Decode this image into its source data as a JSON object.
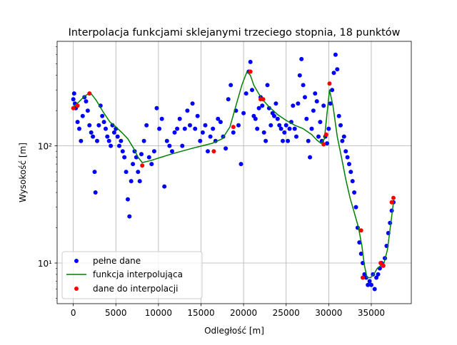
{
  "chart_data": {
    "type": "scatter",
    "title": "Interpolacja funkcjami sklejanymi trzeciego stopnia, 18 punktów",
    "xlabel": "Odległość [m]",
    "ylabel": "Wysokość [m]",
    "yscale": "log",
    "xlim": [
      -1900,
      39700
    ],
    "ylim": [
      4.5,
      780
    ],
    "grid": true,
    "legend_position": "lower-left",
    "x_ticks": [
      0,
      5000,
      10000,
      15000,
      20000,
      25000,
      30000,
      35000
    ],
    "x_tick_labels": [
      "0",
      "5000",
      "10000",
      "15000",
      "20000",
      "25000",
      "30000",
      "35000"
    ],
    "y_ticks": [
      10,
      100
    ],
    "y_tick_labels": [
      "10¹",
      "10²"
    ],
    "series": [
      {
        "name": "pełne dane",
        "style": "points",
        "color": "#0000ff",
        "x": [
          0,
          100,
          200,
          300,
          500,
          700,
          900,
          1100,
          1300,
          1500,
          1700,
          1900,
          2100,
          2300,
          2500,
          2600,
          2800,
          3000,
          3200,
          3400,
          3600,
          3800,
          4000,
          4200,
          4400,
          4600,
          4800,
          5000,
          5200,
          5400,
          5600,
          5800,
          6000,
          6200,
          6400,
          6600,
          6800,
          7000,
          7200,
          7400,
          7600,
          7800,
          8000,
          8300,
          8600,
          8900,
          9200,
          9500,
          9800,
          10100,
          10400,
          10700,
          11000,
          11300,
          11600,
          11900,
          12200,
          12500,
          12800,
          13100,
          13400,
          13700,
          14000,
          14300,
          14600,
          14900,
          15200,
          15500,
          15800,
          16100,
          16400,
          16700,
          17000,
          17300,
          17600,
          17900,
          18200,
          18500,
          18800,
          19100,
          19400,
          19700,
          20000,
          20300,
          20600,
          20800,
          21000,
          21200,
          21400,
          21600,
          21800,
          22000,
          22200,
          22400,
          22600,
          22800,
          23000,
          23200,
          23400,
          23600,
          23800,
          24000,
          24200,
          24400,
          24600,
          24800,
          25000,
          25200,
          25400,
          25600,
          25800,
          26000,
          26200,
          26400,
          26600,
          26800,
          27000,
          27200,
          27400,
          27600,
          27800,
          28000,
          28200,
          28400,
          28600,
          28800,
          29000,
          29200,
          29400,
          29600,
          29800,
          30000,
          30200,
          30400,
          30600,
          30800,
          31000,
          31200,
          31400,
          31600,
          31800,
          32000,
          32200,
          32400,
          32600,
          32800,
          33000,
          33200,
          33400,
          33600,
          33800,
          34000,
          34200,
          34400,
          34600,
          34800,
          35000,
          35200,
          35400,
          35600,
          35800,
          36000,
          36200,
          36400,
          36600,
          36800,
          37000,
          37200,
          37400,
          37600
        ],
        "y": [
          250,
          280,
          230,
          210,
          160,
          140,
          110,
          180,
          260,
          240,
          200,
          150,
          130,
          120,
          60,
          40,
          110,
          150,
          220,
          180,
          160,
          140,
          120,
          110,
          100,
          150,
          130,
          140,
          120,
          100,
          110,
          90,
          80,
          60,
          35,
          25,
          50,
          70,
          90,
          80,
          60,
          50,
          85,
          110,
          150,
          80,
          70,
          90,
          210,
          140,
          170,
          45,
          110,
          100,
          90,
          130,
          140,
          170,
          100,
          140,
          200,
          150,
          230,
          140,
          180,
          110,
          130,
          150,
          90,
          120,
          140,
          110,
          170,
          160,
          120,
          95,
          250,
          330,
          130,
          200,
          150,
          70,
          190,
          280,
          430,
          520,
          300,
          180,
          170,
          140,
          210,
          260,
          220,
          130,
          110,
          330,
          210,
          150,
          190,
          180,
          230,
          170,
          150,
          140,
          110,
          130,
          150,
          110,
          140,
          160,
          220,
          140,
          120,
          230,
          400,
          550,
          330,
          260,
          170,
          110,
          80,
          140,
          200,
          280,
          240,
          120,
          160,
          110,
          220,
          120,
          105,
          140,
          230,
          300,
          420,
          600,
          450,
          180,
          150,
          110,
          120,
          90,
          80,
          70,
          60,
          50,
          40,
          30,
          20,
          15,
          12,
          10,
          8,
          7.5,
          6.5,
          7,
          6.5,
          8,
          6,
          7.5,
          8,
          9,
          10,
          9.5,
          11,
          14,
          18,
          22,
          28,
          33
        ]
      },
      {
        "name": "funkcja interpolująca",
        "style": "line",
        "color": "#008000",
        "x": [
          0,
          600,
          1300,
          2000,
          2700,
          3500,
          4300,
          5000,
          5700,
          6400,
          7100,
          7600,
          8100,
          9100,
          10300,
          11500,
          12700,
          13900,
          15100,
          16300,
          17500,
          18400,
          19100,
          19800,
          20400,
          20800,
          21200,
          21700,
          22200,
          23000,
          24000,
          25000,
          26000,
          27000,
          28000,
          28600,
          29100,
          29500,
          29800,
          30100,
          30500,
          31000,
          31500,
          32000,
          32500,
          33000,
          33500,
          33900,
          34200,
          34500,
          34900,
          35300,
          35700,
          36100,
          36500,
          36900,
          37300,
          37600
        ],
        "y": [
          215,
          235,
          265,
          285,
          245,
          195,
          160,
          145,
          130,
          115,
          95,
          80,
          72,
          75,
          80,
          85,
          90,
          95,
          100,
          105,
          115,
          145,
          220,
          330,
          430,
          400,
          330,
          285,
          250,
          215,
          185,
          165,
          150,
          140,
          125,
          112,
          105,
          115,
          190,
          300,
          220,
          120,
          80,
          52,
          36,
          27,
          20,
          14,
          9.5,
          7.5,
          7.5,
          8,
          9,
          9.5,
          10,
          13,
          22,
          33
        ]
      },
      {
        "name": "dane do interpolacji",
        "style": "points",
        "color": "#ff0000",
        "x": [
          0,
          500,
          1900,
          8100,
          16500,
          18800,
          20800,
          22000,
          22300,
          29400,
          29700,
          30100,
          33800,
          34000,
          36100,
          36400,
          37400,
          37600
        ],
        "y": [
          210,
          220,
          280,
          68,
          90,
          145,
          430,
          250,
          250,
          103,
          125,
          340,
          19,
          7.5,
          10,
          9.5,
          33,
          36
        ]
      }
    ]
  }
}
